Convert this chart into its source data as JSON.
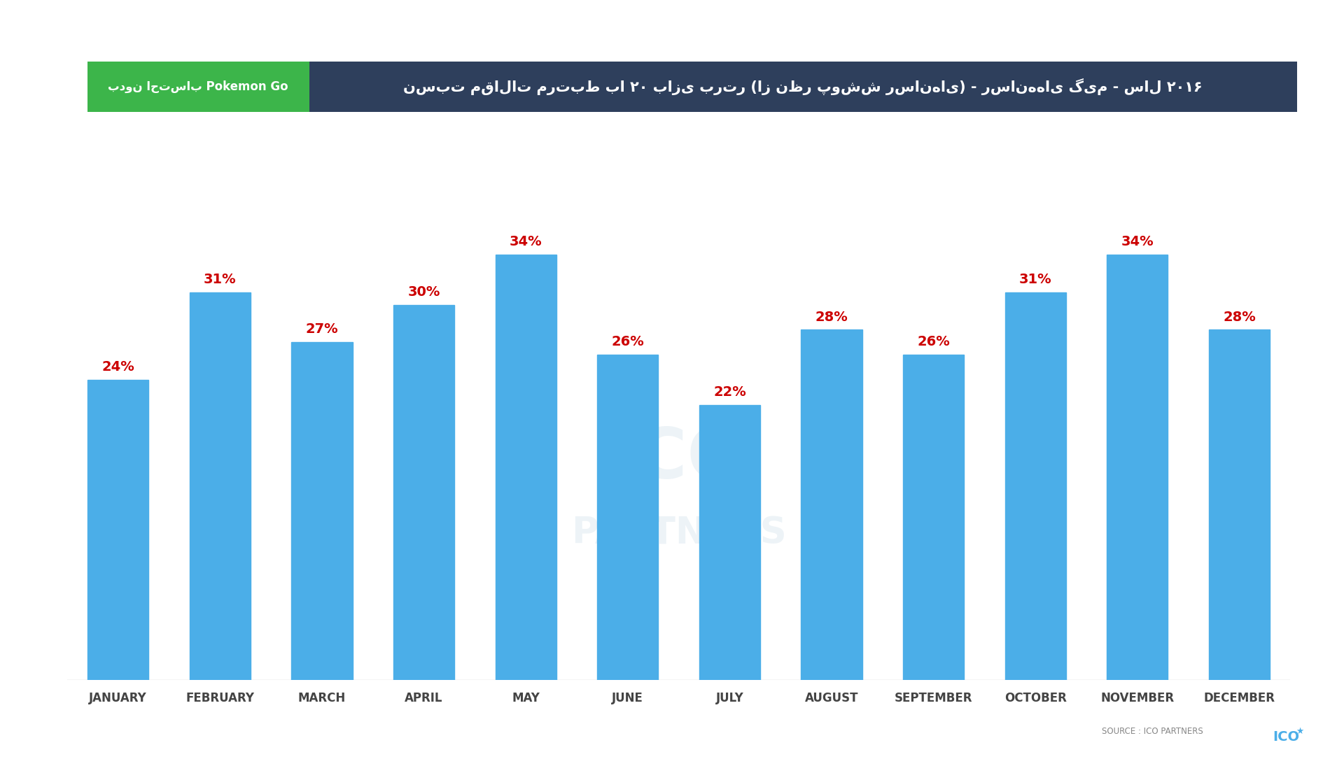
{
  "months": [
    "JANUARY",
    "FEBRUARY",
    "MARCH",
    "APRIL",
    "MAY",
    "JUNE",
    "JULY",
    "AUGUST",
    "SEPTEMBER",
    "OCTOBER",
    "NOVEMBER",
    "DECEMBER"
  ],
  "values": [
    24,
    31,
    27,
    30,
    34,
    26,
    22,
    28,
    26,
    31,
    34,
    28
  ],
  "bar_color": "#4baee8",
  "label_color": "#cc0000",
  "background_color": "#ffffff",
  "title_box_color": "#2e3f5c",
  "title_text_color": "#ffffff",
  "title_highlight_color": "#3cb54a",
  "title_text": "نسبت مقالات مرتبط با ۲۰ بازی برتر (از نظر پوشش رسانهای) - رسانه‌های گیم - سال ۲۰۱۶",
  "title_highlight_text": "بدون احتساب Pokemon Go",
  "source_text": "SOURCE : ICO PARTNERS",
  "ylim": [
    0,
    42
  ],
  "grid_color": "#cccccc",
  "tick_label_color": "#444444",
  "tick_fontsize": 12,
  "value_fontsize": 14,
  "bar_width": 0.6
}
